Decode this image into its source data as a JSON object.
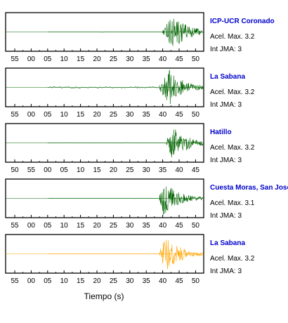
{
  "chart_data": {
    "type": "line",
    "xlabel": "Tiempo (s)",
    "colors": {
      "normal": "#006400",
      "highlight": "#ffa500",
      "station": "#0000cc"
    },
    "panels": [
      {
        "station": "ICP-UCR Coronado",
        "accel_label": "Acel. Max. 3.2",
        "int_label": "Int JMA: 3",
        "color": "#006400",
        "tick_labels": [
          "55",
          "00",
          "05",
          "10",
          "15",
          "20",
          "25",
          "30",
          "35",
          "40",
          "45",
          "50"
        ],
        "onset_second": 40,
        "peak_second": 43
      },
      {
        "station": "La Sabana",
        "accel_label": "Acel. Max. 3.2",
        "int_label": "Int JMA: 3",
        "color": "#006400",
        "tick_labels": [
          "55",
          "00",
          "05",
          "10",
          "15",
          "20",
          "25",
          "30",
          "35",
          "40",
          "45",
          "50"
        ],
        "onset_second": 39,
        "peak_second": 42
      },
      {
        "station": "Hatillo",
        "accel_label": "Acel. Max. 3.2",
        "int_label": "Int JMA: 3",
        "color": "#006400",
        "tick_labels": [
          "50",
          "55",
          "00",
          "05",
          "10",
          "15",
          "20",
          "25",
          "30",
          "35",
          "40",
          "45"
        ],
        "onset_second": 36,
        "peak_second": 38
      },
      {
        "station": "Cuesta Moras, San José",
        "accel_label": "Acel. Max. 3.1",
        "int_label": "Int JMA: 3",
        "color": "#006400",
        "tick_labels": [
          "55",
          "00",
          "05",
          "10",
          "15",
          "20",
          "25",
          "30",
          "35",
          "40",
          "45",
          "50"
        ],
        "onset_second": 39,
        "peak_second": 40
      },
      {
        "station": "La Sabana",
        "accel_label": "Acel. Max. 3.2",
        "int_label": "Int JMA: 3",
        "color": "#ffa500",
        "tick_labels": [
          "55",
          "00",
          "05",
          "10",
          "15",
          "20",
          "25",
          "30",
          "35",
          "40",
          "45",
          "50"
        ],
        "onset_second": 39,
        "peak_second": 41
      }
    ]
  }
}
